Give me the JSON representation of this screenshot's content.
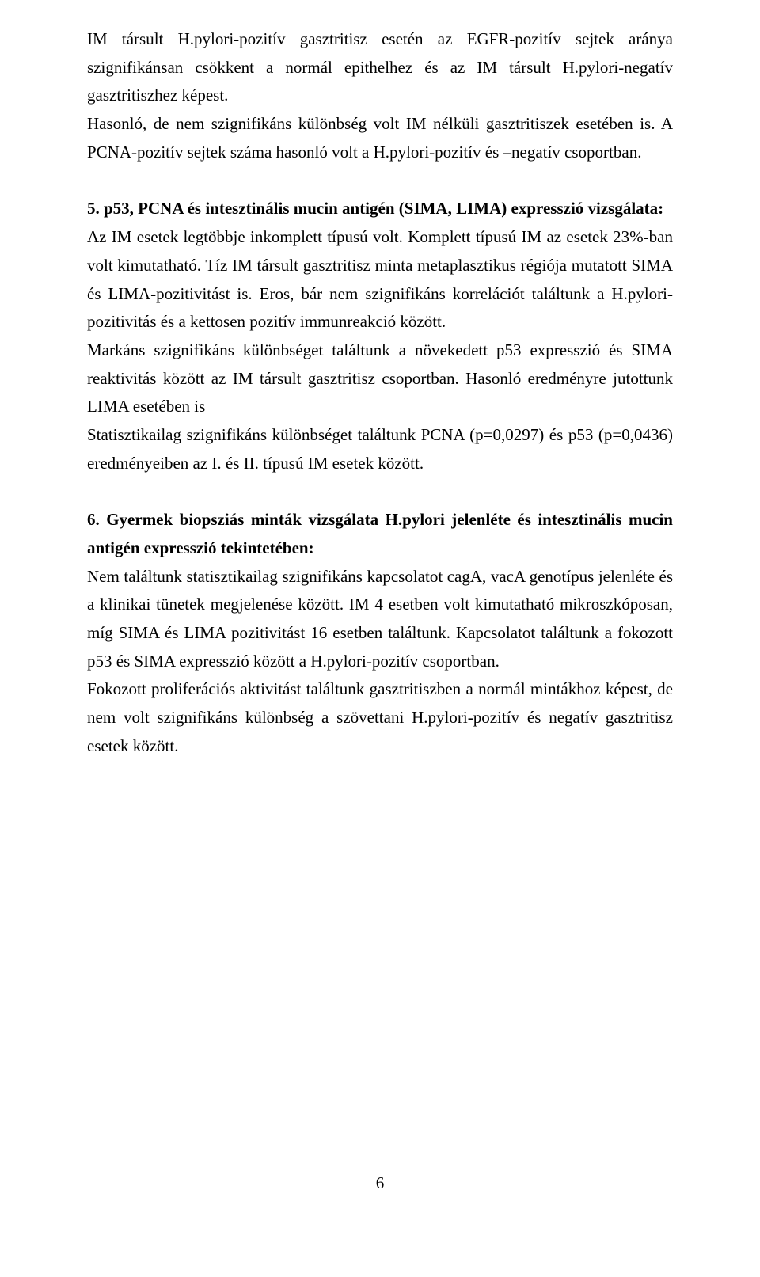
{
  "p1": "IM társult H.pylori-pozitív gasztritisz esetén az EGFR-pozitív sejtek aránya szignifikánsan csökkent a normál epithelhez és az IM társult H.pylori-negatív gasztritiszhez képest.",
  "p2": "Hasonló, de nem szignifikáns különbség volt IM nélküli gasztritiszek esetében is. A PCNA-pozitív sejtek száma hasonló volt a H.pylori-pozitív és –negatív csoportban.",
  "p3_heading": "5. p53, PCNA és intesztinális mucin antigén (SIMA, LIMA) expresszió vizsgálata:",
  "p3_body1": "Az IM esetek legtöbbje inkomplett típusú volt. Komplett típusú IM az esetek 23%-ban volt kimutatható. Tíz IM társult gasztritisz minta metaplasztikus régiója mutatott SIMA és LIMA-pozitivitást is. Eros, bár nem szignifikáns korrelációt találtunk a H.pylori-pozitivitás és a kettosen pozitív immunreakció között.",
  "p3_body2": "Markáns szignifikáns különbséget találtunk a növekedett p53 expresszió és SIMA reaktivitás között az IM társult gasztritisz csoportban. Hasonló eredményre jutottunk LIMA esetében is",
  "p3_body3": "Statisztikailag szignifikáns különbséget találtunk PCNA (p=0,0297) és p53 (p=0,0436) eredményeiben az I. és II. típusú IM esetek között.",
  "p4_heading": "6. Gyermek biopsziás minták vizsgálata H.pylori jelenléte és intesztinális mucin antigén expresszió tekintetében:",
  "p4_body1": "Nem találtunk statisztikailag szignifikáns kapcsolatot cagA, vacA genotípus jelenléte és a klinikai tünetek megjelenése között. IM 4 esetben volt kimutatható mikroszkóposan, míg SIMA és LIMA pozitivitást 16 esetben találtunk. Kapcsolatot találtunk a fokozott p53 és SIMA expresszió között a H.pylori-pozitív csoportban.",
  "p4_body2": "Fokozott proliferációs aktivitást találtunk gasztritiszben a normál mintákhoz képest, de nem volt szignifikáns különbség a szövettani H.pylori-pozitív és negatív gasztritisz esetek között.",
  "page_number": "6"
}
